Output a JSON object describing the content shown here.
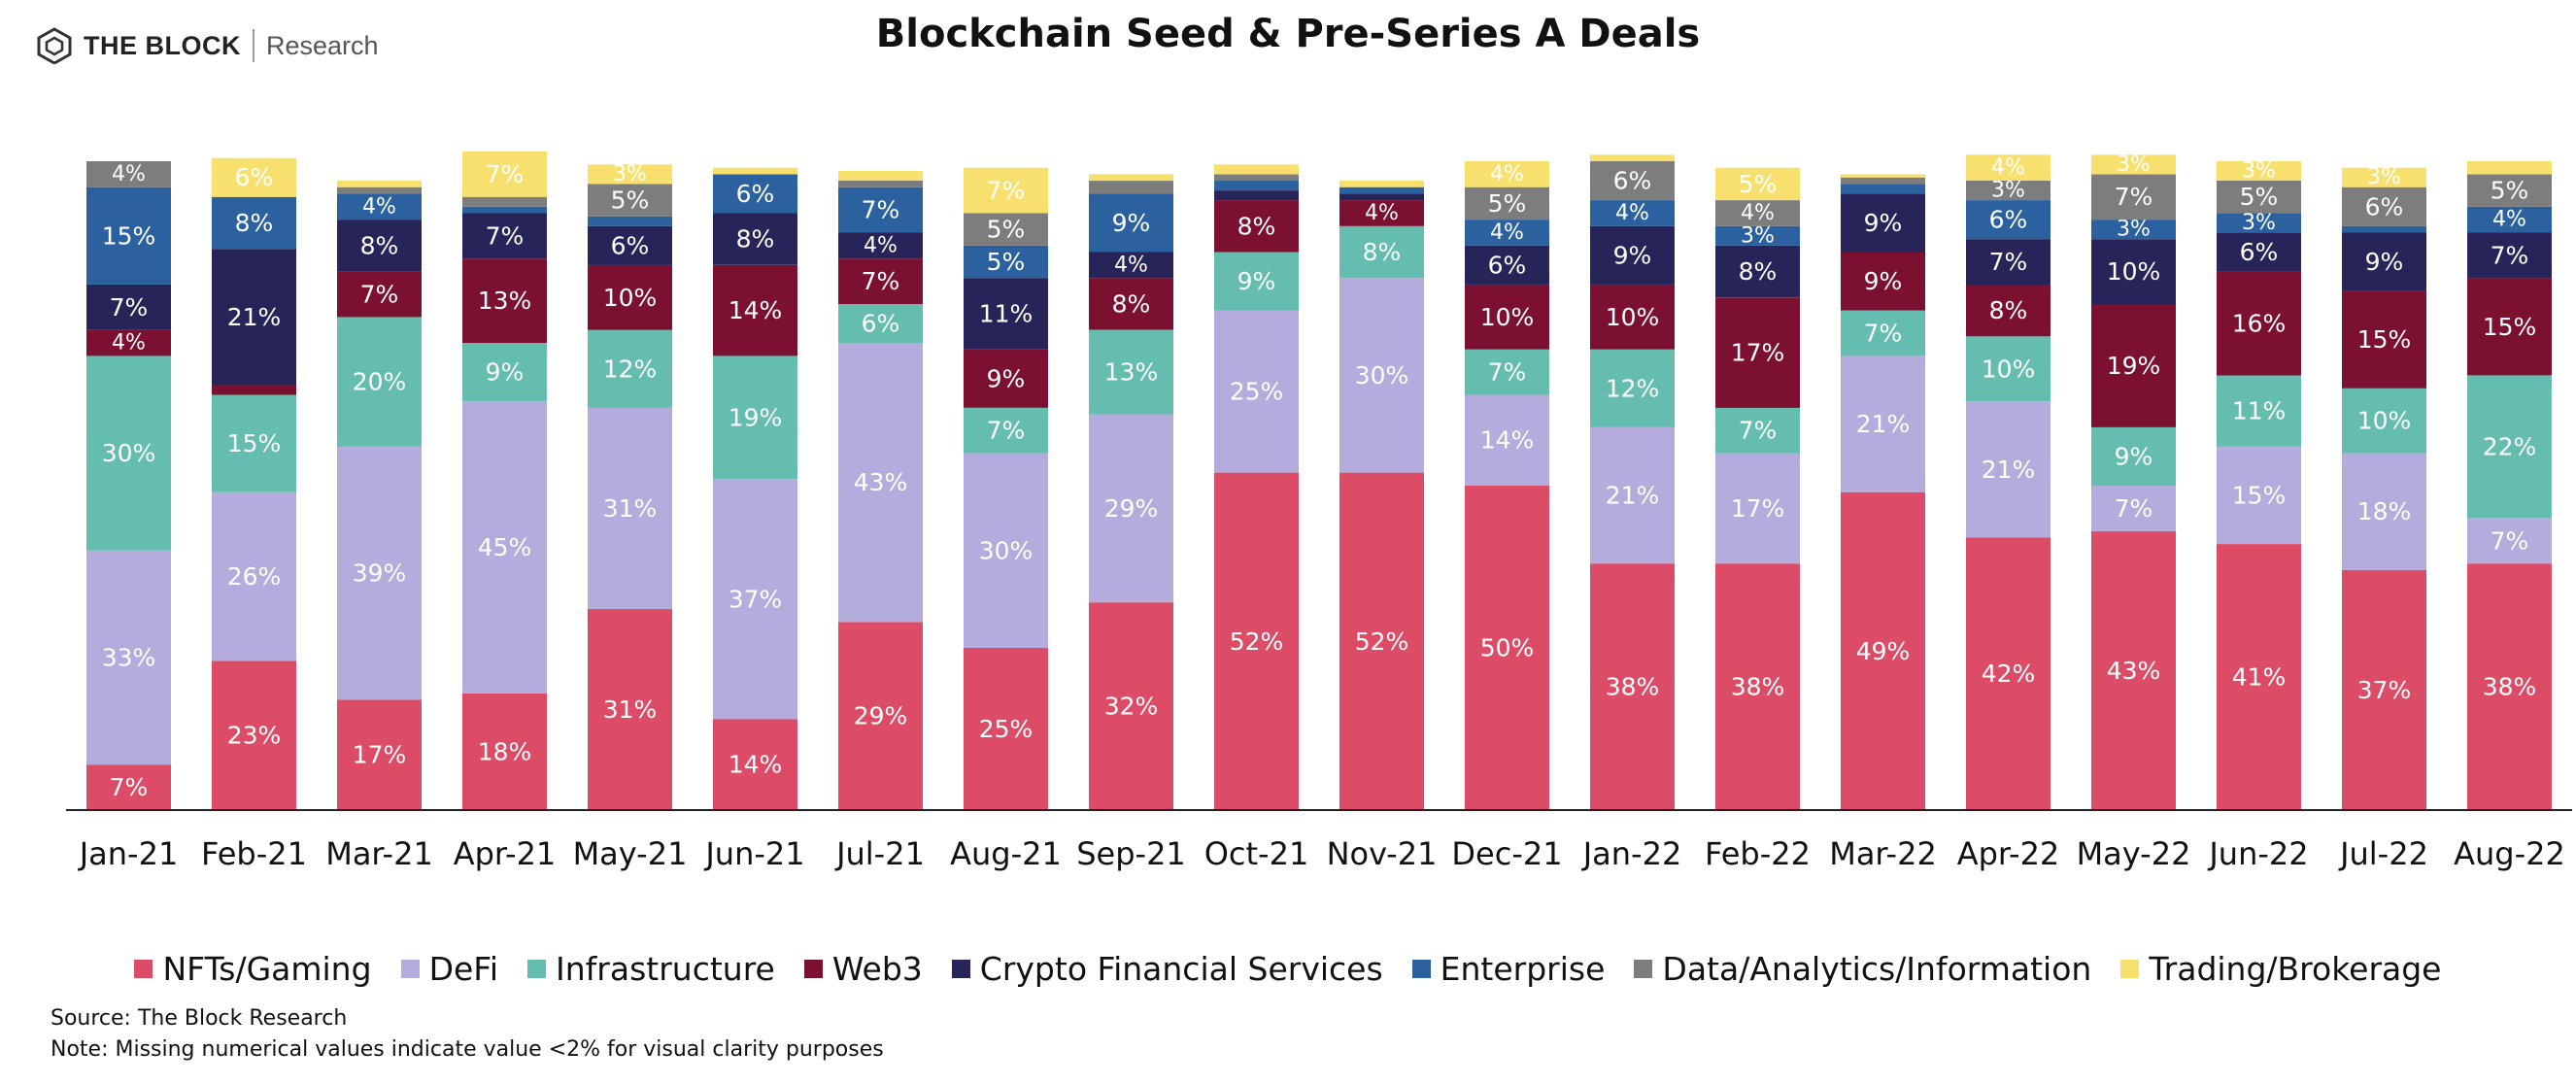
{
  "logo": {
    "brand": "THE BLOCK",
    "sub": "Research"
  },
  "chart_data": {
    "type": "bar",
    "stacked": true,
    "title": "Blockchain Seed & Pre-Series A Deals",
    "categories": [
      "Jan-21",
      "Feb-21",
      "Mar-21",
      "Apr-21",
      "May-21",
      "Jun-21",
      "Jul-21",
      "Aug-21",
      "Sep-21",
      "Oct-21",
      "Nov-21",
      "Dec-21",
      "Jan-22",
      "Feb-22",
      "Mar-22",
      "Apr-22",
      "May-22",
      "Jun-22",
      "Jul-22",
      "Aug-22"
    ],
    "ylim": [
      0,
      100
    ],
    "label_threshold": 2,
    "legend_position": "bottom",
    "series": [
      {
        "name": "NFTs/Gaming",
        "color": "#dd4c66",
        "label_color": "#ffffff",
        "values": [
          7,
          23,
          17,
          18,
          31,
          14,
          29,
          25,
          32,
          52,
          52,
          50,
          38,
          38,
          49,
          42,
          43,
          41,
          37,
          38
        ]
      },
      {
        "name": "DeFi",
        "color": "#b3acdc",
        "label_color": "#ffffff",
        "values": [
          33,
          26,
          39,
          45,
          31,
          37,
          43,
          30,
          29,
          25,
          30,
          14,
          21,
          17,
          21,
          21,
          7,
          15,
          18,
          7
        ]
      },
      {
        "name": "Infrastructure",
        "color": "#64bdae",
        "label_color": "#ffffff",
        "values": [
          30,
          15,
          20,
          9,
          12,
          19,
          6,
          7,
          13,
          9,
          8,
          7,
          12,
          7,
          7,
          10,
          9,
          11,
          10,
          22
        ]
      },
      {
        "name": "Web3",
        "color": "#7b1030",
        "label_color": "#ffffff",
        "values": [
          4,
          1.5,
          7,
          13,
          10,
          14,
          7,
          9,
          8,
          8,
          4,
          10,
          10,
          17,
          9,
          8,
          19,
          16,
          15,
          15
        ]
      },
      {
        "name": "Crypto Financial Services",
        "color": "#262459",
        "label_color": "#ffffff",
        "values": [
          7,
          21,
          8,
          7,
          6,
          8,
          4,
          11,
          4,
          1.5,
          1,
          6,
          9,
          8,
          9,
          7,
          10,
          6,
          9,
          7
        ]
      },
      {
        "name": "Enterprise",
        "color": "#2b619f",
        "label_color": "#ffffff",
        "values": [
          15,
          8,
          4,
          1,
          1.5,
          6,
          7,
          5,
          9,
          1.5,
          1,
          4,
          4,
          3,
          1.5,
          6,
          3,
          3,
          1,
          4
        ]
      },
      {
        "name": "Data/Analytics/Information",
        "color": "#7d7d7d",
        "label_color": "#ffffff",
        "values": [
          4,
          0,
          1,
          1.5,
          5,
          0,
          1,
          5,
          2,
          1,
          0,
          5,
          6,
          4,
          1,
          3,
          7,
          5,
          6,
          5
        ]
      },
      {
        "name": "Trading/Brokerage",
        "color": "#f7e06e",
        "label_color": "#ffffff",
        "values": [
          0,
          6,
          1,
          7,
          3,
          1,
          1.5,
          7,
          1,
          1.5,
          1,
          4,
          1,
          5,
          0.5,
          4,
          3,
          3,
          3,
          2
        ]
      }
    ]
  },
  "source": "Source: The Block Research",
  "note": "Note: Missing numerical values indicate value <2% for visual clarity purposes"
}
